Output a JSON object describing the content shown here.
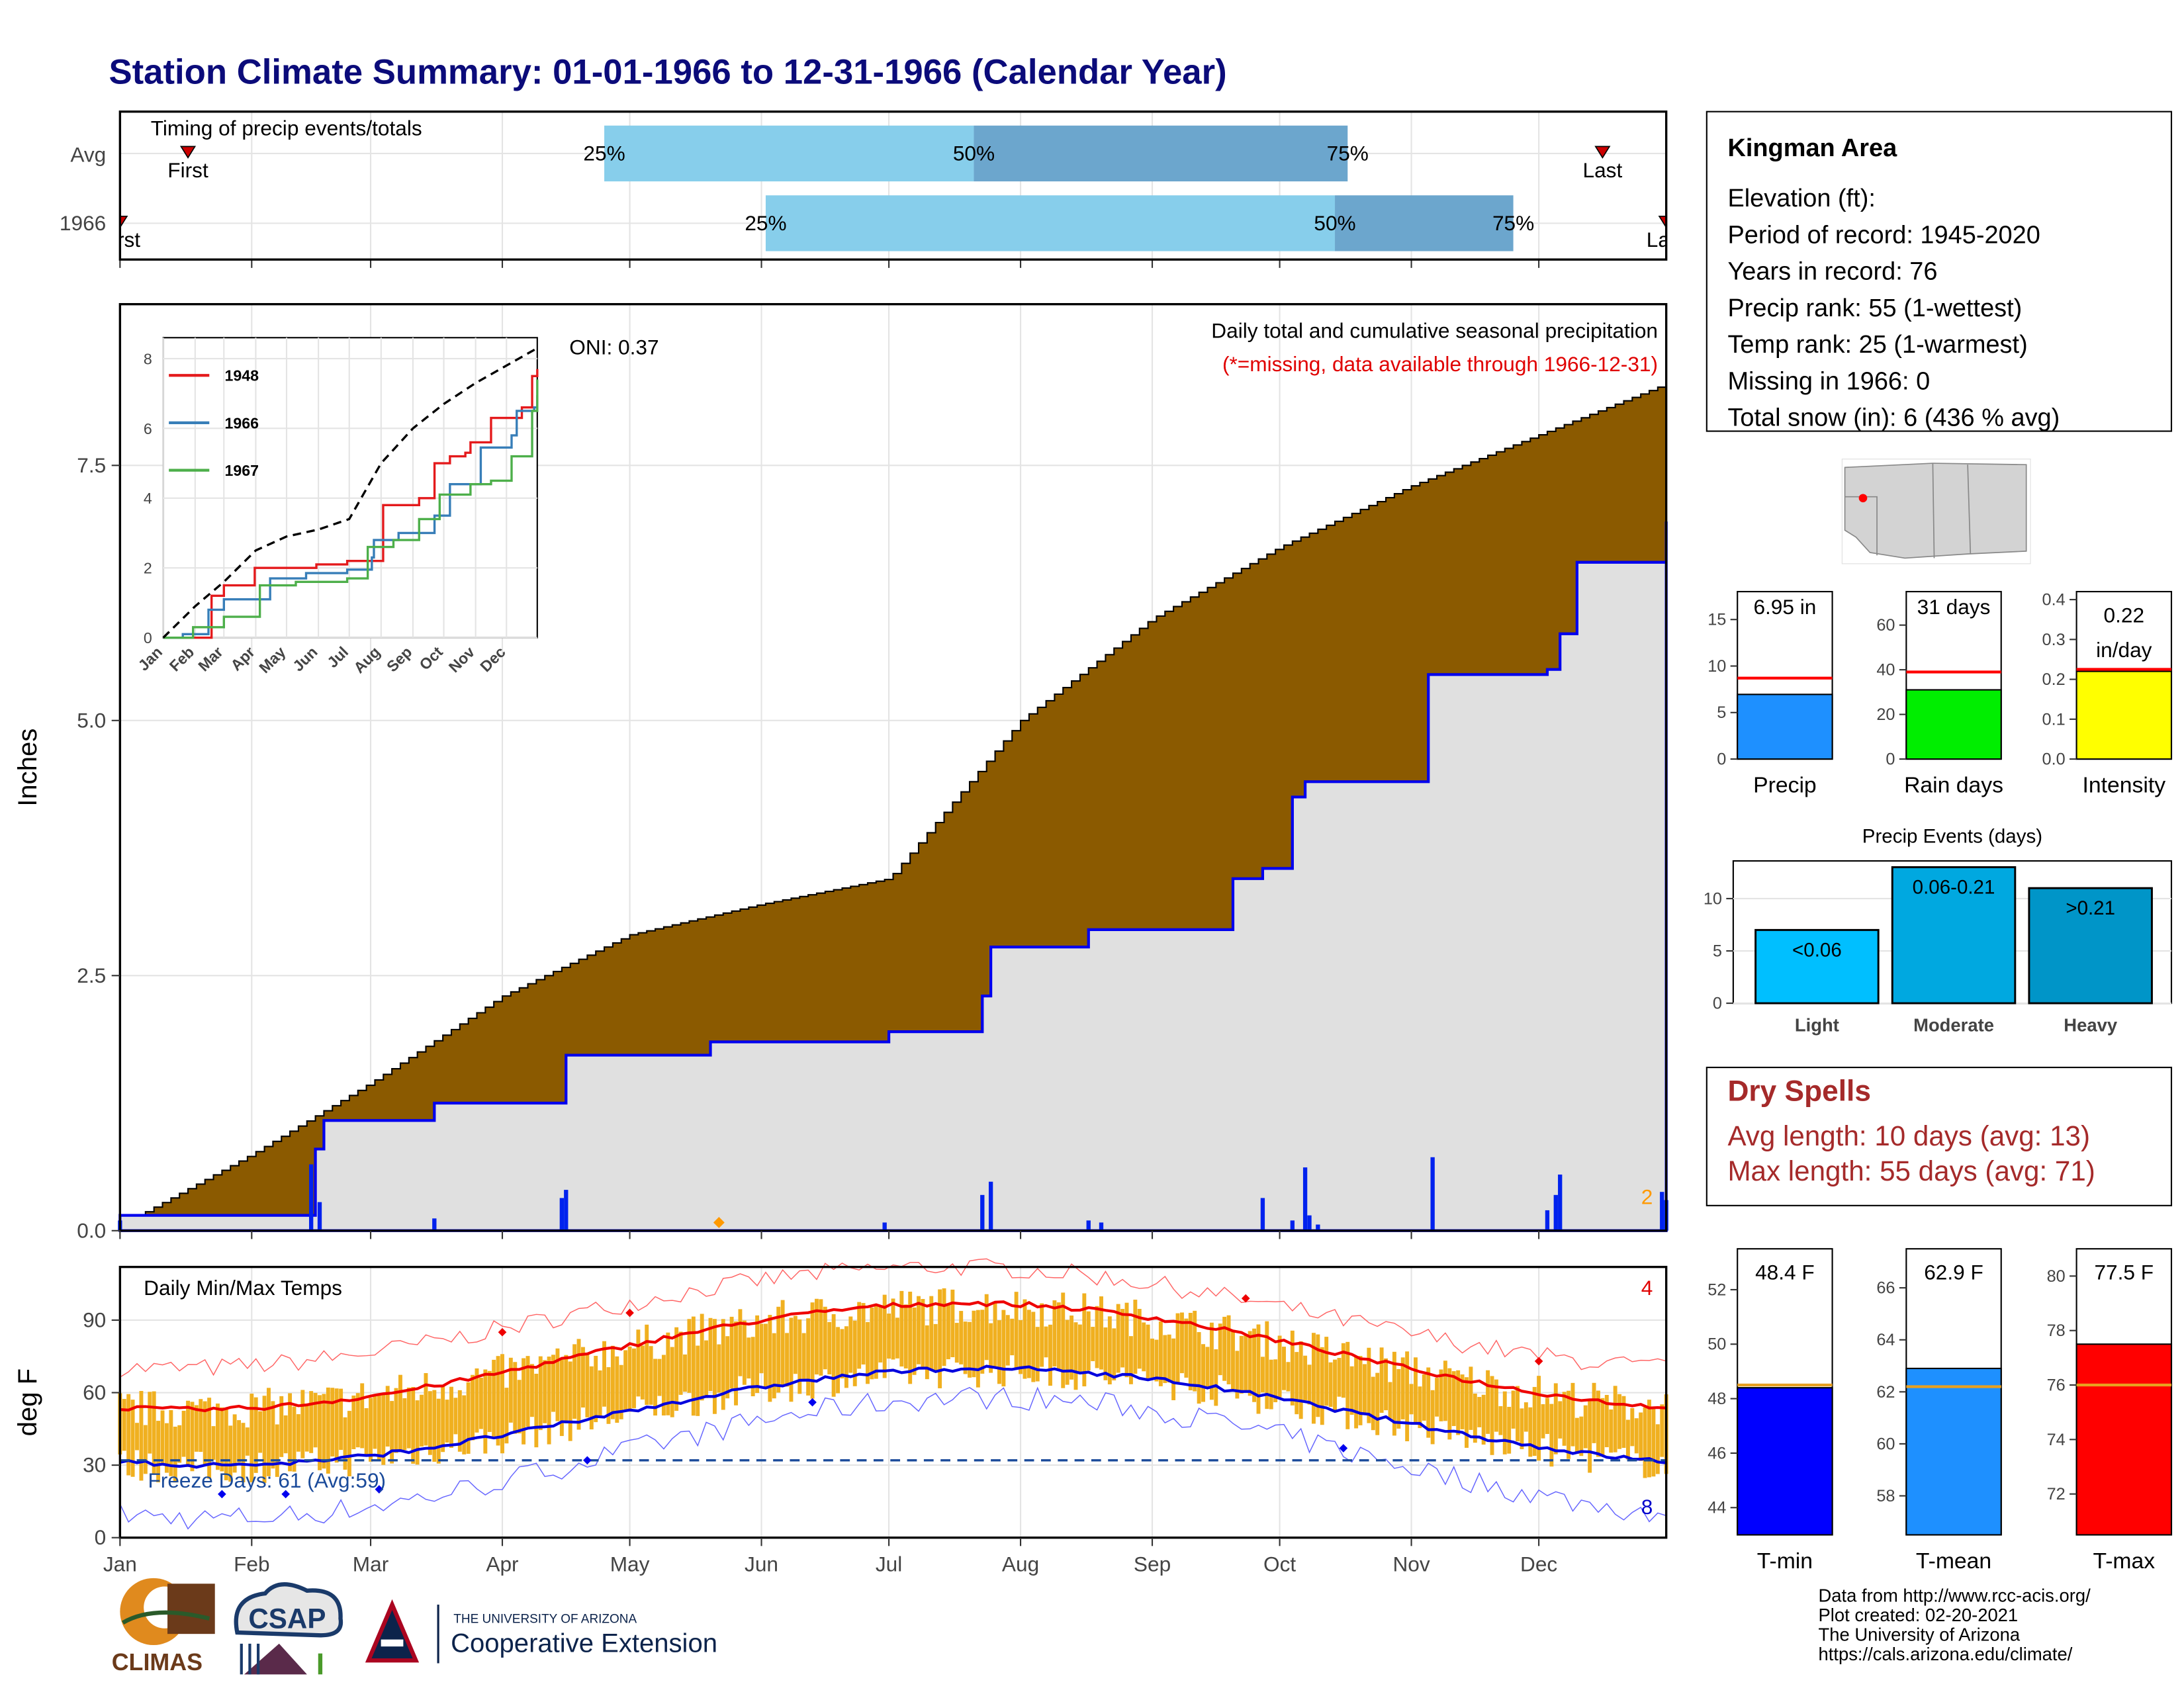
{
  "title": "Station Climate Summary: 01-01-1966 to 12-31-1966 (Calendar Year)",
  "timing": {
    "label": "Timing of precip events/totals",
    "rows": [
      {
        "name": "Avg",
        "first_doy": 17,
        "last_doy": 350,
        "p25": 115,
        "p50": 202,
        "p75": 290,
        "first_label": "First",
        "last_label": "Last"
      },
      {
        "name": "1966",
        "first_doy": 1,
        "last_doy": 365,
        "p25": 153,
        "p50": 287,
        "p75": 329,
        "first_label": "First",
        "last_label": "Last"
      }
    ],
    "pct_labels": [
      "25%",
      "50%",
      "75%"
    ]
  },
  "months": [
    "Jan",
    "Feb",
    "Mar",
    "Apr",
    "May",
    "Jun",
    "Jul",
    "Aug",
    "Sep",
    "Oct",
    "Nov",
    "Dec"
  ],
  "precip_panel": {
    "ylabel": "Inches",
    "yticks": [
      "0.0",
      "2.5",
      "5.0",
      "7.5"
    ],
    "header": "Daily total and cumulative seasonal precipitation",
    "missing_note": "(*=missing, data available through 1966-12-31)",
    "oni": "ONI: 0.37",
    "corner_count": "2"
  },
  "inset": {
    "years": [
      "1948",
      "1966",
      "1967"
    ],
    "colors": [
      "#e41a1c",
      "#377eb8",
      "#4daf4a"
    ],
    "yticks": [
      "0",
      "2",
      "4",
      "6",
      "8"
    ],
    "xticks": [
      "Jan",
      "Feb",
      "Mar",
      "Apr",
      "May",
      "Jun",
      "Jul",
      "Aug",
      "Sep",
      "Oct",
      "Nov",
      "Dec"
    ]
  },
  "temp_panel": {
    "ylabel": "deg F",
    "label": "Daily Min/Max Temps",
    "yticks": [
      "0",
      "30",
      "60",
      "90"
    ],
    "freeze": "Freeze Days: 61 (Avg:59)",
    "red_count": "4",
    "blue_count": "8"
  },
  "station": {
    "name": "Kingman Area",
    "lines": [
      "Elevation (ft):",
      "Period of record: 1945-2020",
      "Years in record: 76",
      "Precip rank: 55 (1-wettest)",
      "Temp rank: 25 (1-warmest)",
      "Missing in 1966: 0",
      "Total snow (in): 6 (436 % avg)"
    ]
  },
  "mini_bars": [
    {
      "label": "Precip",
      "value_text": "6.95 in",
      "value": 6.95,
      "avg": 8.7,
      "max": 18,
      "yticks": [
        "0",
        "5",
        "10",
        "15"
      ],
      "color": "#1e90ff"
    },
    {
      "label": "Rain days",
      "value_text": "31 days",
      "value": 31,
      "avg": 39,
      "max": 75,
      "yticks": [
        "0",
        "20",
        "40",
        "60"
      ],
      "color": "#00ee00"
    },
    {
      "label": "Intensity",
      "value_text": "0.22 in/day",
      "value": 0.22,
      "avg": 0.225,
      "max": 0.42,
      "yticks": [
        "0.0",
        "0.1",
        "0.2",
        "0.3",
        "0.4"
      ],
      "color": "#ffff00"
    }
  ],
  "events": {
    "title": "Precip Events (days)",
    "categories": [
      "Light",
      "Moderate",
      "Heavy"
    ],
    "values": [
      7,
      13,
      11
    ],
    "labels": [
      "<0.06",
      "0.06-0.21",
      ">0.21"
    ],
    "yticks": [
      "0",
      "5",
      "10"
    ],
    "colors": [
      "#00bfff",
      "#00a8e0",
      "#0095c8"
    ]
  },
  "dry_spells": {
    "title": "Dry Spells",
    "avg": "Avg length: 10 days (avg: 13)",
    "max": "Max length: 55 days (avg: 71)"
  },
  "temp_bars": [
    {
      "label": "T-min",
      "value_text": "48.4 F",
      "value": 48.4,
      "avg": 48.5,
      "ymin": 43,
      "ymax": 53.5,
      "yticks": [
        "44",
        "46",
        "48",
        "50",
        "52"
      ],
      "color": "#0000ff"
    },
    {
      "label": "T-mean",
      "value_text": "62.9 F",
      "value": 62.9,
      "avg": 62.2,
      "ymin": 56.5,
      "ymax": 67.5,
      "yticks": [
        "58",
        "60",
        "62",
        "64",
        "66"
      ],
      "color": "#1e90ff"
    },
    {
      "label": "T-max",
      "value_text": "77.5 F",
      "value": 77.5,
      "avg": 76.0,
      "ymin": 70.5,
      "ymax": 81,
      "yticks": [
        "72",
        "74",
        "76",
        "78",
        "80"
      ],
      "color": "#ff0000"
    }
  ],
  "footer": {
    "lines": [
      "Data from http://www.rcc-acis.org/",
      "Plot created: 02-20-2021",
      "The University of Arizona",
      "https://cals.arizona.edu/climate/"
    ],
    "climas": "CLIMAS",
    "csap": "CSAP",
    "ua_small": "THE UNIVERSITY OF ARIZONA",
    "ua_big": "Cooperative Extension"
  },
  "chart_data": {
    "type": "area",
    "title": "Station Climate Summary: 01-01-1966 to 12-31-1966 (Calendar Year)",
    "ylabel": "Inches",
    "ylim": [
      0,
      9.0
    ],
    "series": [
      {
        "name": "1966",
        "x": [
          "01-01",
          "02-15",
          "02-16",
          "02-18",
          "03-16",
          "04-15",
          "04-16",
          "05-20",
          "07-01",
          "07-23",
          "07-25",
          "08-17",
          "08-29",
          "09-20",
          "09-27",
          "10-04",
          "10-07",
          "11-05",
          "12-03",
          "12-06",
          "12-10",
          "12-29",
          "12-31"
        ],
        "values": [
          0.15,
          0.15,
          0.8,
          1.08,
          1.25,
          1.25,
          1.72,
          1.85,
          1.95,
          2.3,
          2.78,
          2.95,
          2.95,
          3.45,
          3.55,
          4.25,
          4.4,
          5.45,
          5.5,
          5.85,
          6.55,
          6.55,
          6.95
        ]
      },
      {
        "name": "Avg",
        "x": [
          "01-01",
          "02-01",
          "03-01",
          "04-01",
          "05-01",
          "06-01",
          "07-01",
          "08-01",
          "09-01",
          "10-01",
          "11-01",
          "12-01",
          "12-31"
        ],
        "values": [
          0.05,
          0.75,
          1.45,
          2.3,
          2.9,
          3.2,
          3.45,
          5.0,
          6.0,
          6.7,
          7.3,
          7.8,
          8.3
        ]
      }
    ],
    "daily_precip": [
      {
        "x": "01-01",
        "value": 0.1
      },
      {
        "x": "02-15",
        "value": 0.65
      },
      {
        "x": "02-17",
        "value": 0.28
      },
      {
        "x": "03-16",
        "value": 0.12
      },
      {
        "x": "04-15",
        "value": 0.32
      },
      {
        "x": "04-16",
        "value": 0.4
      },
      {
        "x": "06-30",
        "value": 0.08
      },
      {
        "x": "07-23",
        "value": 0.35
      },
      {
        "x": "07-25",
        "value": 0.48
      },
      {
        "x": "08-17",
        "value": 0.1
      },
      {
        "x": "08-20",
        "value": 0.08
      },
      {
        "x": "09-27",
        "value": 0.32
      },
      {
        "x": "10-04",
        "value": 0.1
      },
      {
        "x": "10-07",
        "value": 0.62
      },
      {
        "x": "10-08",
        "value": 0.15
      },
      {
        "x": "10-10",
        "value": 0.06
      },
      {
        "x": "11-06",
        "value": 0.72
      },
      {
        "x": "12-03",
        "value": 0.2
      },
      {
        "x": "12-05",
        "value": 0.35
      },
      {
        "x": "12-06",
        "value": 0.55
      },
      {
        "x": "12-30",
        "value": 0.38
      },
      {
        "x": "12-31",
        "value": 0.3
      }
    ],
    "temps": {
      "ylim": [
        0,
        112
      ],
      "avg_max": [
        {
          "x": "01-01",
          "value": 53
        },
        {
          "x": "04-01",
          "value": 66
        },
        {
          "x": "07-25",
          "value": 97
        },
        {
          "x": "10-01",
          "value": 82
        },
        {
          "x": "12-31",
          "value": 54
        }
      ],
      "avg_min": [
        {
          "x": "01-01",
          "value": 30
        },
        {
          "x": "04-01",
          "value": 38
        },
        {
          "x": "07-25",
          "value": 70
        },
        {
          "x": "10-01",
          "value": 53
        },
        {
          "x": "12-31",
          "value": 32
        }
      ],
      "freeze_line": 32
    }
  }
}
